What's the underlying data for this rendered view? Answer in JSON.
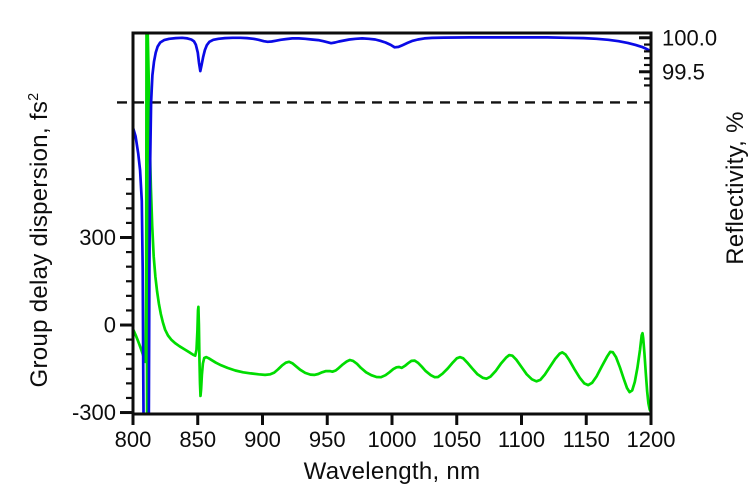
{
  "chart_data": {
    "type": "line",
    "title": "",
    "grid": false,
    "legend": "none",
    "x_axis": {
      "label": "Wavelength, nm",
      "range": [
        800,
        1200
      ],
      "major_ticks": [
        800,
        850,
        900,
        950,
        1000,
        1050,
        1100,
        1150,
        1200
      ],
      "tick_labels": [
        "800",
        "850",
        "900",
        "950",
        "1000",
        "1050",
        "1100",
        "1150",
        "1200"
      ]
    },
    "left_y_axis": {
      "label": "Group delay dispersion, fs",
      "label_superscript": "2",
      "range_shown": [
        -305,
        1001
      ],
      "major_ticks": [
        300,
        0,
        -300
      ],
      "major_tick_labels": [
        "300",
        "0",
        "-300"
      ],
      "minor_ticks": [
        500,
        450,
        400,
        350,
        250,
        200,
        150,
        100,
        50,
        -50,
        -100,
        -150,
        -200,
        -250
      ]
    },
    "right_y_axis": {
      "label": "Reflectivity, %",
      "range_shown": [
        94.47,
        100.07
      ],
      "major_ticks": [
        100.0,
        99.5
      ],
      "major_tick_labels": [
        "100.0",
        "99.5"
      ],
      "minor_ticks": [
        99.9,
        99.8,
        99.7,
        99.6,
        99.4,
        99.3
      ]
    },
    "threshold_line": {
      "style": "dashed",
      "color": "#111111",
      "right_axis_value": 99.05
    },
    "series": [
      {
        "name": "Reflectivity",
        "axis": "right",
        "color": "#0a0ae6",
        "points": [
          [
            800,
            98.68
          ],
          [
            802,
            98.55
          ],
          [
            804,
            98.3
          ],
          [
            805.5,
            98.05
          ],
          [
            806.8,
            97.6
          ],
          [
            807.5,
            96.6
          ],
          [
            807.9,
            95.2
          ],
          [
            808.2,
            94.3
          ],
          [
            812.2,
            94.3
          ],
          [
            812.7,
            96.6
          ],
          [
            813.3,
            98.2
          ],
          [
            814,
            99.05
          ],
          [
            815,
            99.45
          ],
          [
            816.2,
            99.65
          ],
          [
            817.5,
            99.78
          ],
          [
            819,
            99.87
          ],
          [
            821,
            99.93
          ],
          [
            824,
            99.965
          ],
          [
            828,
            99.985
          ],
          [
            833,
            99.995
          ],
          [
            838,
            100.0
          ],
          [
            842,
            99.99
          ],
          [
            845,
            99.975
          ],
          [
            847,
            99.95
          ],
          [
            848.5,
            99.9
          ],
          [
            850,
            99.78
          ],
          [
            851,
            99.63
          ],
          [
            852,
            99.51
          ],
          [
            853,
            99.6
          ],
          [
            854.2,
            99.72
          ],
          [
            855.5,
            99.82
          ],
          [
            857,
            99.89
          ],
          [
            859,
            99.94
          ],
          [
            862,
            99.97
          ],
          [
            866,
            99.985
          ],
          [
            871,
            99.995
          ],
          [
            877,
            100.0
          ],
          [
            883,
            100.0
          ],
          [
            888,
            99.995
          ],
          [
            893,
            99.985
          ],
          [
            897,
            99.97
          ],
          [
            901,
            99.95
          ],
          [
            904,
            99.94
          ],
          [
            907,
            99.945
          ],
          [
            910,
            99.955
          ],
          [
            914,
            99.97
          ],
          [
            918,
            99.98
          ],
          [
            923,
            99.99
          ],
          [
            928,
            99.99
          ],
          [
            933,
            99.985
          ],
          [
            938,
            99.975
          ],
          [
            943,
            99.965
          ],
          [
            947,
            99.95
          ],
          [
            950,
            99.935
          ],
          [
            953,
            99.92
          ],
          [
            956,
            99.93
          ],
          [
            959,
            99.945
          ],
          [
            963,
            99.96
          ],
          [
            967,
            99.975
          ],
          [
            972,
            99.985
          ],
          [
            977,
            99.99
          ],
          [
            982,
            99.985
          ],
          [
            987,
            99.975
          ],
          [
            991,
            99.955
          ],
          [
            995,
            99.93
          ],
          [
            999,
            99.895
          ],
          [
            1002,
            99.86
          ],
          [
            1005,
            99.865
          ],
          [
            1008,
            99.89
          ],
          [
            1012,
            99.925
          ],
          [
            1016,
            99.955
          ],
          [
            1020,
            99.975
          ],
          [
            1025,
            99.99
          ],
          [
            1031,
            99.998
          ],
          [
            1040,
            100.003
          ],
          [
            1060,
            100.005
          ],
          [
            1080,
            100.005
          ],
          [
            1100,
            100.005
          ],
          [
            1120,
            100.005
          ],
          [
            1135,
            100.0
          ],
          [
            1148,
            99.995
          ],
          [
            1158,
            99.985
          ],
          [
            1167,
            99.97
          ],
          [
            1175,
            99.95
          ],
          [
            1182,
            99.925
          ],
          [
            1188,
            99.895
          ],
          [
            1193,
            99.865
          ],
          [
            1196,
            99.84
          ],
          [
            1198,
            99.82
          ],
          [
            1200,
            99.79
          ]
        ]
      },
      {
        "name": "Group delay dispersion",
        "axis": "left",
        "color": "#00dc00",
        "points": [
          [
            800,
            -14
          ],
          [
            802,
            -34
          ],
          [
            804,
            -56
          ],
          [
            806,
            -80
          ],
          [
            807.5,
            -99
          ],
          [
            808.6,
            -116
          ],
          [
            809.4,
            -126
          ],
          [
            809.9,
            -95
          ],
          [
            810.2,
            150
          ],
          [
            810.45,
            1005
          ],
          [
            810.9,
            -305
          ],
          [
            811.35,
            1005
          ],
          [
            812.2,
            830
          ],
          [
            813,
            620
          ],
          [
            813.8,
            470
          ],
          [
            814.8,
            340
          ],
          [
            816,
            235
          ],
          [
            817.3,
            165
          ],
          [
            818.6,
            115
          ],
          [
            820,
            73
          ],
          [
            821.5,
            38
          ],
          [
            823,
            10
          ],
          [
            824.8,
            -16
          ],
          [
            827,
            -36
          ],
          [
            829.5,
            -50
          ],
          [
            832.5,
            -62
          ],
          [
            836,
            -73
          ],
          [
            840,
            -84
          ],
          [
            844,
            -95
          ],
          [
            846.5,
            -102
          ],
          [
            848,
            -105
          ],
          [
            849,
            -85
          ],
          [
            849.7,
            -20
          ],
          [
            850.2,
            50
          ],
          [
            850.5,
            62
          ],
          [
            850.9,
            0
          ],
          [
            851.3,
            -110
          ],
          [
            851.7,
            -200
          ],
          [
            852.1,
            -243
          ],
          [
            852.6,
            -220
          ],
          [
            853.2,
            -170
          ],
          [
            854,
            -132
          ],
          [
            855,
            -113
          ],
          [
            856.5,
            -110
          ],
          [
            858.5,
            -114
          ],
          [
            861,
            -121
          ],
          [
            864,
            -129
          ],
          [
            868,
            -138
          ],
          [
            873,
            -147
          ],
          [
            879,
            -156
          ],
          [
            885,
            -162
          ],
          [
            891,
            -166
          ],
          [
            897,
            -169
          ],
          [
            902,
            -171
          ],
          [
            906,
            -169
          ],
          [
            909,
            -163
          ],
          [
            912,
            -152
          ],
          [
            915,
            -139
          ],
          [
            918,
            -129
          ],
          [
            920.5,
            -126
          ],
          [
            923,
            -131
          ],
          [
            926,
            -142
          ],
          [
            929,
            -153
          ],
          [
            933,
            -164
          ],
          [
            937,
            -170
          ],
          [
            940,
            -171
          ],
          [
            943,
            -168
          ],
          [
            946,
            -162
          ],
          [
            949,
            -158
          ],
          [
            952,
            -158
          ],
          [
            954,
            -160
          ],
          [
            956.5,
            -156
          ],
          [
            959,
            -147
          ],
          [
            962,
            -135
          ],
          [
            965,
            -125
          ],
          [
            967.5,
            -120
          ],
          [
            970,
            -123
          ],
          [
            973,
            -133
          ],
          [
            976,
            -147
          ],
          [
            980,
            -162
          ],
          [
            984,
            -172
          ],
          [
            988,
            -178
          ],
          [
            991.5,
            -179
          ],
          [
            995,
            -172
          ],
          [
            998,
            -162
          ],
          [
            1001,
            -151
          ],
          [
            1003.5,
            -145
          ],
          [
            1005.5,
            -144
          ],
          [
            1007.5,
            -147
          ],
          [
            1010,
            -140
          ],
          [
            1012.5,
            -131
          ],
          [
            1015,
            -123
          ],
          [
            1017.5,
            -122
          ],
          [
            1020,
            -129
          ],
          [
            1023,
            -143
          ],
          [
            1026,
            -158
          ],
          [
            1030,
            -172
          ],
          [
            1033,
            -179
          ],
          [
            1035.5,
            -178
          ],
          [
            1039,
            -167
          ],
          [
            1043,
            -149
          ],
          [
            1047,
            -128
          ],
          [
            1050,
            -114
          ],
          [
            1052.5,
            -110
          ],
          [
            1055,
            -114
          ],
          [
            1058,
            -128
          ],
          [
            1062,
            -149
          ],
          [
            1066,
            -169
          ],
          [
            1070,
            -181
          ],
          [
            1073,
            -184
          ],
          [
            1076,
            -177
          ],
          [
            1080,
            -158
          ],
          [
            1084,
            -133
          ],
          [
            1088,
            -112
          ],
          [
            1090.5,
            -103
          ],
          [
            1093,
            -105
          ],
          [
            1096,
            -119
          ],
          [
            1100,
            -144
          ],
          [
            1104,
            -169
          ],
          [
            1108,
            -186
          ],
          [
            1111.5,
            -193
          ],
          [
            1114.5,
            -188
          ],
          [
            1118,
            -170
          ],
          [
            1122,
            -143
          ],
          [
            1126,
            -116
          ],
          [
            1129.5,
            -98
          ],
          [
            1131.5,
            -94
          ],
          [
            1134,
            -101
          ],
          [
            1137,
            -121
          ],
          [
            1141,
            -152
          ],
          [
            1145,
            -181
          ],
          [
            1148.5,
            -200
          ],
          [
            1151.5,
            -206
          ],
          [
            1154.5,
            -198
          ],
          [
            1158,
            -176
          ],
          [
            1162,
            -142
          ],
          [
            1166,
            -109
          ],
          [
            1168.5,
            -92
          ],
          [
            1170.5,
            -93
          ],
          [
            1173,
            -110
          ],
          [
            1176,
            -145
          ],
          [
            1179,
            -185
          ],
          [
            1181.5,
            -216
          ],
          [
            1183.5,
            -230
          ],
          [
            1185.5,
            -224
          ],
          [
            1187.5,
            -195
          ],
          [
            1189.5,
            -147
          ],
          [
            1191.5,
            -85
          ],
          [
            1192.8,
            -35
          ],
          [
            1193.4,
            -28
          ],
          [
            1194,
            -45
          ],
          [
            1195,
            -100
          ],
          [
            1196,
            -165
          ],
          [
            1197,
            -225
          ],
          [
            1198,
            -268
          ],
          [
            1199,
            -290
          ],
          [
            1200,
            -298
          ]
        ]
      }
    ]
  },
  "colors": {
    "frame": "#0d0d0d",
    "background": "#ffffff",
    "reflectivity_curve": "#0a0ae6",
    "gdd_curve": "#00dc00",
    "threshold_dash": "#111111"
  }
}
